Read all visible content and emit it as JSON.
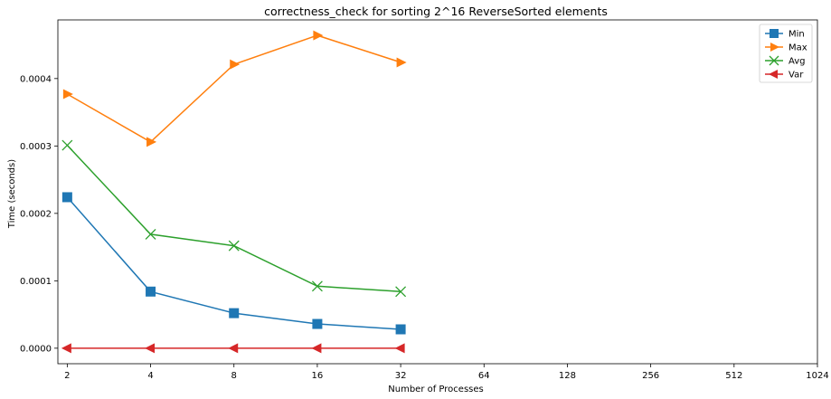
{
  "chart_data": {
    "type": "line",
    "title": "correctness_check for sorting 2^16 ReverseSorted elements",
    "xlabel": "Number of Processes",
    "ylabel": "Time (seconds)",
    "x_scale": "log2",
    "x_ticks": [
      2,
      4,
      8,
      16,
      32,
      64,
      128,
      256,
      512,
      1024
    ],
    "x_tick_labels": [
      "2",
      "4",
      "8",
      "16",
      "32",
      "64",
      "128",
      "256",
      "512",
      "1024"
    ],
    "y_ticks": [
      0.0,
      0.0001,
      0.0002,
      0.0003,
      0.0004
    ],
    "y_tick_labels": [
      "0.0000",
      "0.0001",
      "0.0002",
      "0.0003",
      "0.0004"
    ],
    "ylim": [
      -2.3e-05,
      0.000487
    ],
    "xlim": [
      1.85,
      1024
    ],
    "legend_position": "top-right",
    "grid": false,
    "x": [
      2,
      4,
      8,
      16,
      32
    ],
    "series": [
      {
        "name": "Min",
        "color": "#1f77b4",
        "marker": "square",
        "values": [
          0.000224,
          8.4e-05,
          5.2e-05,
          3.6e-05,
          2.8e-05
        ]
      },
      {
        "name": "Max",
        "color": "#ff7f0e",
        "marker": "triangle-right",
        "values": [
          0.000377,
          0.000306,
          0.000421,
          0.000464,
          0.000424
        ]
      },
      {
        "name": "Avg",
        "color": "#2ca02c",
        "marker": "x",
        "values": [
          0.000301,
          0.000169,
          0.000152,
          9.2e-05,
          8.4e-05
        ]
      },
      {
        "name": "Var",
        "color": "#d62728",
        "marker": "triangle-left",
        "values": [
          0.0,
          0.0,
          0.0,
          0.0,
          0.0
        ]
      }
    ]
  }
}
